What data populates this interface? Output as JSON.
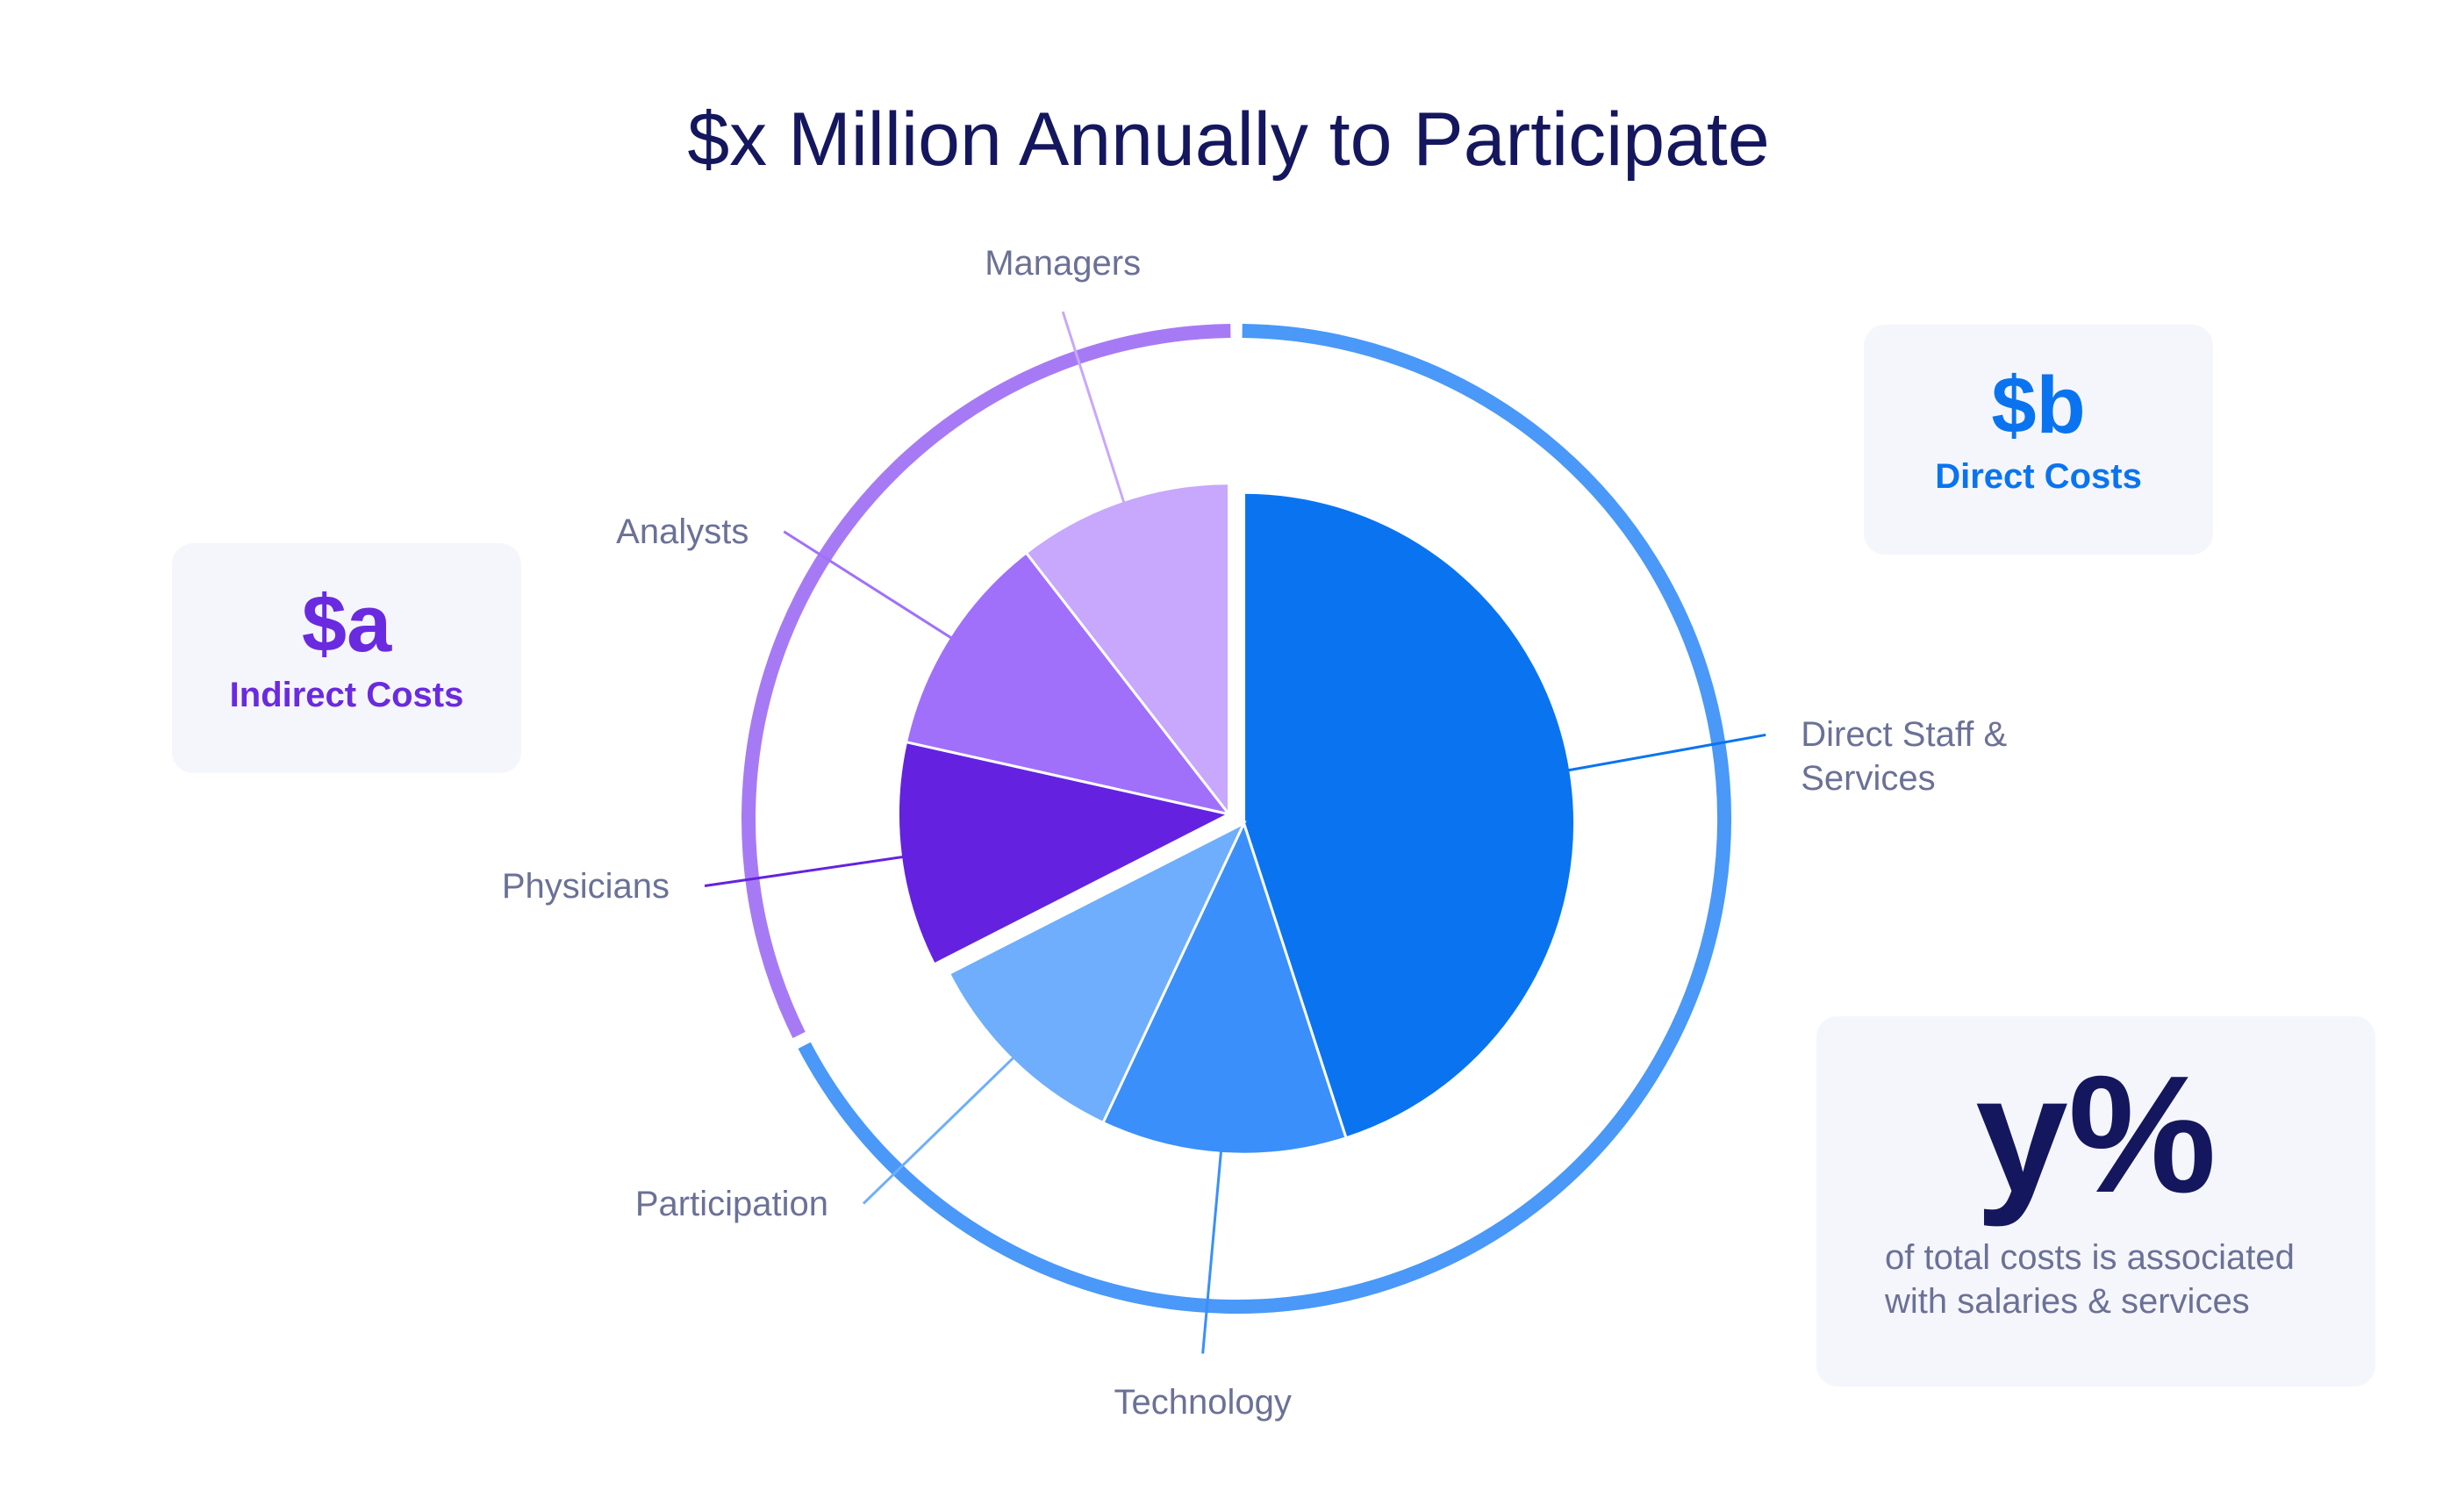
{
  "chart_data": {
    "type": "pie",
    "title": "$x Million Annually to Participate",
    "groups": [
      {
        "name": "Direct Costs",
        "value_label": "$b",
        "color": "#4a98f8",
        "label_color": "#0a74f0",
        "categories": [
          "Direct Staff & Services",
          "Technology",
          "Participation"
        ],
        "values": [
          45,
          12,
          10.5
        ],
        "colors": [
          "#0a74f0",
          "#3a8ffa",
          "#6eaefc"
        ]
      },
      {
        "name": "Indirect Costs",
        "value_label": "$a",
        "color": "#a77af5",
        "label_color": "#6a2ae0",
        "categories": [
          "Physicians",
          "Analysts",
          "Managers"
        ],
        "values": [
          11,
          11,
          10.5
        ],
        "colors": [
          "#6422e0",
          "#a070fa",
          "#c7a8fc"
        ]
      }
    ]
  },
  "callout": {
    "value": "y%",
    "text": "of total costs is associated with salaries & services"
  }
}
